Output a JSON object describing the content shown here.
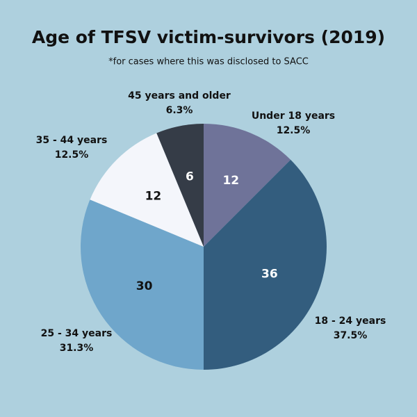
{
  "chart_data": {
    "type": "pie",
    "title": "Age of TFSV victim-survivors (2019)",
    "subtitle": "*for cases where this was disclosed to SACC",
    "categories": [
      "Under 18 years",
      "18 - 24 years",
      "25 - 34 years",
      "35 - 44 years",
      "45 years and older"
    ],
    "values": [
      12,
      36,
      30,
      12,
      6
    ],
    "share_labels": [
      "12.5%",
      "37.5%",
      "31.3%",
      "12.5%",
      "6.3%"
    ],
    "colors": [
      "#6f7399",
      "#335d7e",
      "#6fa6cb",
      "#f4f6fb",
      "#353c47"
    ]
  }
}
